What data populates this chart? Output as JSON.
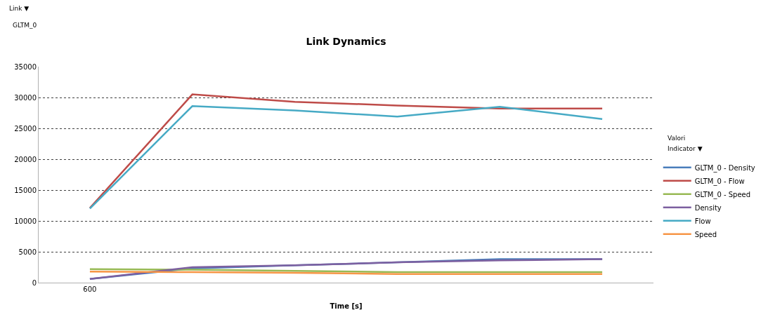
{
  "chart_data": {
    "type": "line",
    "title": "Link Dynamics",
    "xlabel": "Time [s]",
    "categories": [
      "600",
      null,
      null,
      null,
      null,
      null
    ],
    "series": [
      {
        "name": "GLTM_0 - Density",
        "color": "#4a7ebb",
        "values": [
          600,
          2300,
          2800,
          3300,
          3800,
          3800
        ]
      },
      {
        "name": "GLTM_0 - Flow",
        "color": "#be4b48",
        "values": [
          12100,
          30500,
          29300,
          28700,
          28200,
          28200
        ]
      },
      {
        "name": "GLTM_0 - Speed",
        "color": "#98b954",
        "values": [
          2200,
          2100,
          1900,
          1700,
          1700,
          1700
        ]
      },
      {
        "name": "Density",
        "color": "#7d60a0",
        "values": [
          600,
          2500,
          2800,
          3300,
          3600,
          3800
        ]
      },
      {
        "name": "Flow",
        "color": "#46aac5",
        "values": [
          12000,
          28600,
          27900,
          26900,
          28500,
          26500
        ]
      },
      {
        "name": "Speed",
        "color": "#f79646",
        "values": [
          1800,
          1700,
          1600,
          1400,
          1400,
          1400
        ]
      }
    ],
    "ylim": [
      0,
      35000
    ],
    "yticks": [
      0,
      5000,
      10000,
      15000,
      20000,
      25000,
      30000,
      35000
    ],
    "grid": "y",
    "legend": "right",
    "marker": "none",
    "line_style": "solid",
    "annotations": [
      "Link ▼",
      "GLTM_0",
      "Valori",
      "Indicator ▼"
    ]
  }
}
